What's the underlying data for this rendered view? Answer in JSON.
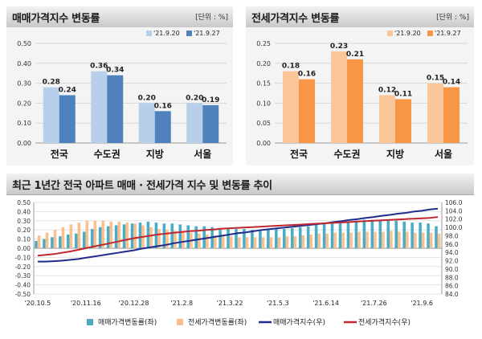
{
  "sale_panel": {
    "title": "매매가격지수 변동률",
    "unit": "[단위 : %]",
    "chart_data": {
      "type": "bar",
      "title": "매매가격지수 변동률",
      "categories": [
        "전국",
        "수도권",
        "지방",
        "서울"
      ],
      "series": [
        {
          "name": "'21.9.20",
          "values": [
            0.28,
            0.36,
            0.2,
            0.2
          ]
        },
        {
          "name": "'21.9.27",
          "values": [
            0.24,
            0.34,
            0.16,
            0.19
          ]
        }
      ],
      "ylim": [
        0,
        0.5
      ],
      "yticks": [
        "0.50",
        "0.40",
        "0.30",
        "0.20",
        "0.10",
        "0.00"
      ],
      "legend": "top-right",
      "colors": [
        "#b7cfe8",
        "#4f81bd"
      ]
    }
  },
  "jeonse_panel": {
    "title": "전세가격지수 변동률",
    "unit": "[단위 : %]",
    "chart_data": {
      "type": "bar",
      "title": "전세가격지수 변동률",
      "categories": [
        "전국",
        "수도권",
        "지방",
        "서울"
      ],
      "series": [
        {
          "name": "'21.9.20",
          "values": [
            0.18,
            0.23,
            0.12,
            0.15
          ]
        },
        {
          "name": "'21.9.27",
          "values": [
            0.16,
            0.21,
            0.11,
            0.14
          ]
        }
      ],
      "ylim": [
        0,
        0.25
      ],
      "yticks": [
        "0.25",
        "0.20",
        "0.15",
        "0.10",
        "0.05",
        "0.00"
      ],
      "legend": "top-right",
      "colors": [
        "#fbc79a",
        "#f79646"
      ]
    }
  },
  "trend_panel": {
    "title": "최근 1년간 전국 아파트 매매 · 전세가격 지수 및 변동률 추이",
    "chart_data": {
      "type": "bar",
      "title": "최근 1년간 전국 아파트 매매 · 전세가격 지수 및 변동률 추이",
      "x_ticks": [
        "'20.10.5",
        "'20.11.16",
        "'20.12.28",
        "'21.2.8",
        "'21.3.22",
        "'21.5.3",
        "'21.6.14",
        "'21.7.26",
        "'21.9.6"
      ],
      "y_left_ticks": [
        "0.50",
        "0.40",
        "0.30",
        "0.20",
        "0.10",
        "0.00",
        "-0.10",
        "-0.20",
        "-0.30",
        "-0.40",
        "-0.50"
      ],
      "y_right_ticks": [
        "106.0",
        "104.0",
        "102.0",
        "100.0",
        "98.0",
        "96.0",
        "94.0",
        "92.0",
        "90.0",
        "88.0",
        "86.0",
        "84.0"
      ],
      "ylim_left": [
        -0.5,
        0.5
      ],
      "ylim_right": [
        84,
        106
      ],
      "series": [
        {
          "name": "매매가격변동률(좌)",
          "kind": "bar",
          "color": "#4bacc6",
          "values": [
            0.08,
            0.1,
            0.12,
            0.13,
            0.15,
            0.16,
            0.18,
            0.21,
            0.23,
            0.24,
            0.25,
            0.26,
            0.27,
            0.28,
            0.29,
            0.28,
            0.27,
            0.27,
            0.26,
            0.25,
            0.24,
            0.24,
            0.23,
            0.22,
            0.22,
            0.21,
            0.21,
            0.2,
            0.2,
            0.2,
            0.21,
            0.21,
            0.22,
            0.23,
            0.24,
            0.26,
            0.27,
            0.28,
            0.28,
            0.29,
            0.3,
            0.31,
            0.31,
            0.3,
            0.3,
            0.3,
            0.29,
            0.28,
            0.28,
            0.27,
            0.24
          ]
        },
        {
          "name": "전세가격변동률(좌)",
          "kind": "bar",
          "color": "#fac090",
          "values": [
            0.14,
            0.17,
            0.2,
            0.23,
            0.26,
            0.28,
            0.3,
            0.3,
            0.3,
            0.29,
            0.29,
            0.28,
            0.27,
            0.25,
            0.23,
            0.21,
            0.2,
            0.19,
            0.18,
            0.17,
            0.16,
            0.15,
            0.14,
            0.13,
            0.13,
            0.12,
            0.12,
            0.12,
            0.12,
            0.12,
            0.12,
            0.13,
            0.13,
            0.14,
            0.15,
            0.16,
            0.16,
            0.17,
            0.17,
            0.17,
            0.18,
            0.18,
            0.18,
            0.18,
            0.19,
            0.18,
            0.18,
            0.17,
            0.17,
            0.17,
            0.16
          ]
        },
        {
          "name": "매매가격지수(우)",
          "kind": "line",
          "color": "#1f2c8c",
          "values": [
            91.8,
            91.8,
            91.9,
            92.0,
            92.2,
            92.4,
            92.7,
            93.0,
            93.3,
            93.6,
            93.9,
            94.2,
            94.5,
            94.9,
            95.2,
            95.5,
            95.8,
            96.2,
            96.5,
            96.8,
            97.1,
            97.4,
            97.7,
            98.0,
            98.3,
            98.6,
            98.8,
            99.1,
            99.4,
            99.6,
            99.8,
            100.0,
            100.2,
            100.4,
            100.6,
            100.8,
            101.0,
            101.3,
            101.5,
            101.8,
            102.0,
            102.3,
            102.5,
            102.8,
            103.0,
            103.3,
            103.5,
            103.8,
            104.0,
            104.3,
            104.5
          ]
        },
        {
          "name": "전세가격지수(우)",
          "kind": "line",
          "color": "#c0262d",
          "values": [
            93.2,
            93.4,
            93.6,
            93.9,
            94.2,
            94.6,
            95.0,
            95.4,
            95.8,
            96.2,
            96.6,
            97.0,
            97.4,
            97.7,
            98.0,
            98.3,
            98.5,
            98.7,
            98.9,
            99.1,
            99.2,
            99.4,
            99.5,
            99.7,
            99.8,
            99.9,
            100.0,
            100.1,
            100.2,
            100.3,
            100.4,
            100.5,
            100.6,
            100.7,
            100.8,
            100.9,
            101.0,
            101.1,
            101.2,
            101.3,
            101.4,
            101.5,
            101.6,
            101.7,
            101.8,
            101.9,
            102.0,
            102.1,
            102.2,
            102.3,
            102.5
          ]
        }
      ],
      "legend": "bottom"
    }
  }
}
